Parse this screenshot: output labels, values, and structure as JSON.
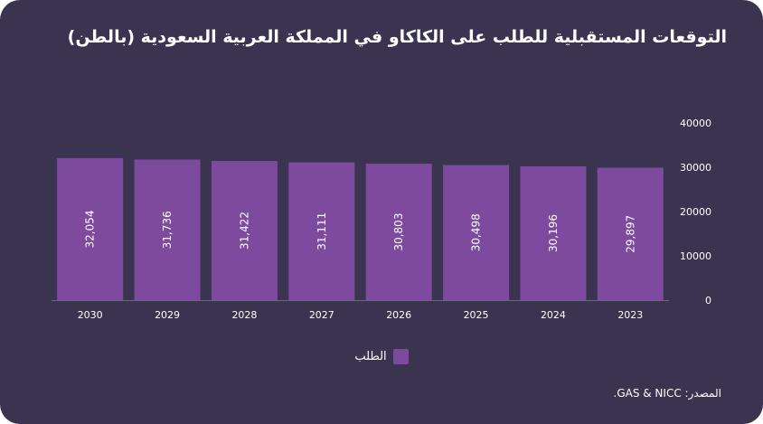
{
  "chart_data": {
    "type": "bar",
    "title": "التوقعات المستقبلية للطلب على الكاكاو في المملكة العربية السعودية (بالطن)",
    "categories": [
      "2030",
      "2029",
      "2028",
      "2027",
      "2026",
      "2025",
      "2024",
      "2023"
    ],
    "series": [
      {
        "name": "الطلب",
        "values": [
          32054,
          31736,
          31422,
          31111,
          30803,
          30498,
          30196,
          29897
        ],
        "labels": [
          "32,054",
          "31,736",
          "31,422",
          "31,111",
          "30,803",
          "30,498",
          "30,196",
          "29,897"
        ]
      }
    ],
    "ylim": [
      0,
      40000
    ],
    "yticks": [
      "0",
      "10000",
      "20000",
      "30000",
      "40000"
    ],
    "y_axis_side": "right",
    "grid": false,
    "legend_position": "bottom-center",
    "bar_color": "#7d4a9e"
  },
  "source": "المصدر: GAS & NICC."
}
